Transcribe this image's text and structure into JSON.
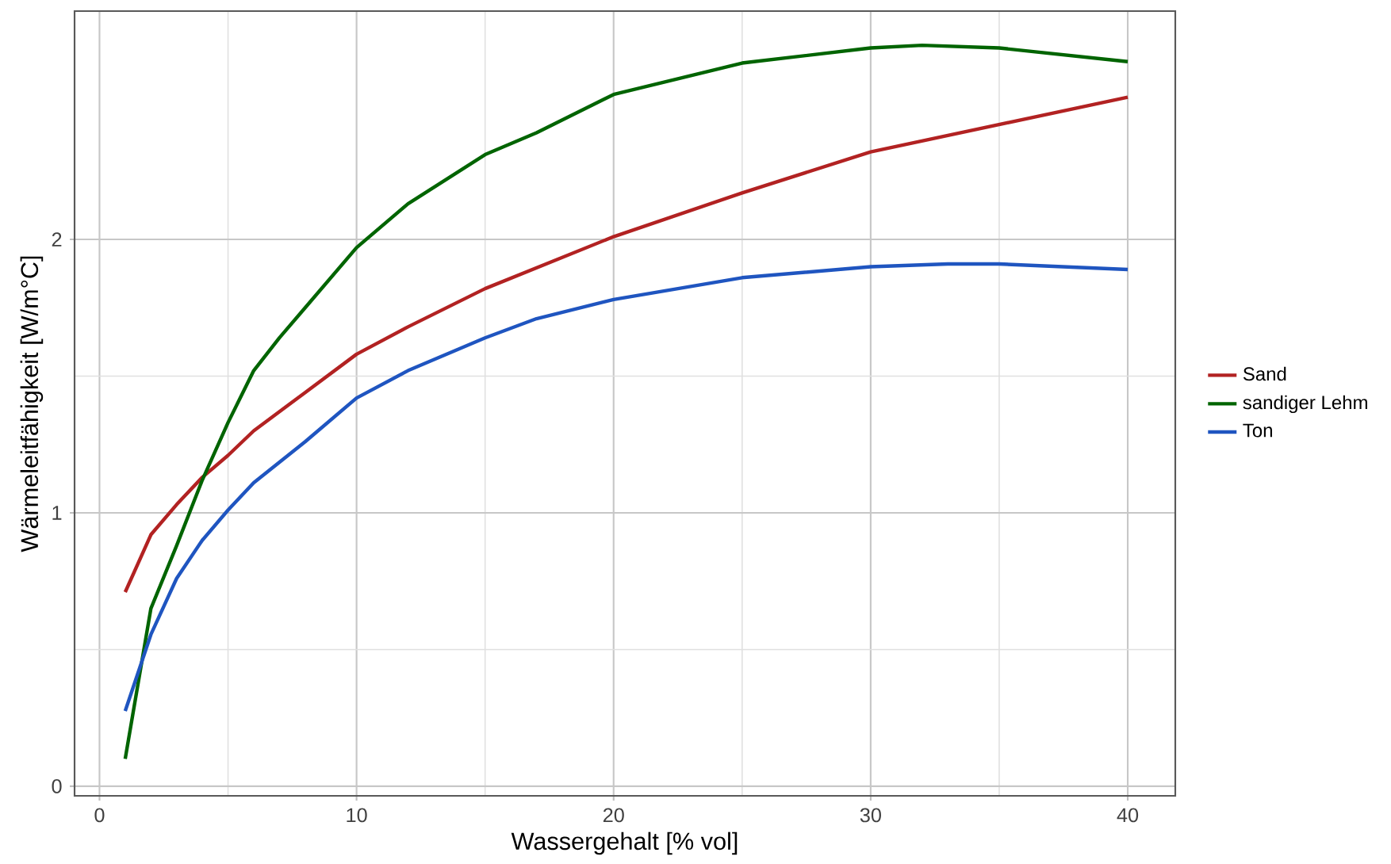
{
  "chart_data": {
    "type": "line",
    "xlabel": "Wassergehalt  [% vol]",
    "ylabel": "Wärmeleitfähigkeit  [W/m°C]",
    "xlim": [
      -0.97,
      41.85
    ],
    "ylim": [
      -0.035,
      2.835
    ],
    "xticks": [
      0,
      10,
      20,
      30,
      40
    ],
    "yticks": [
      0,
      1,
      2
    ],
    "grid": true,
    "legend": "right",
    "line_style": "solid",
    "marker": "none",
    "series": [
      {
        "name": "Sand",
        "color": "#b22222",
        "x": [
          1,
          2,
          3,
          4,
          5,
          6,
          8,
          10,
          12,
          15,
          20,
          25,
          30,
          35,
          40
        ],
        "values": [
          0.71,
          0.92,
          1.03,
          1.13,
          1.21,
          1.3,
          1.44,
          1.58,
          1.68,
          1.82,
          2.01,
          2.17,
          2.32,
          2.42,
          2.52
        ]
      },
      {
        "name": "sandiger Lehm",
        "color": "#006400",
        "x": [
          1,
          2,
          3,
          4,
          5,
          6,
          7,
          8,
          10,
          12,
          15,
          17,
          20,
          25,
          30,
          32,
          35,
          40
        ],
        "values": [
          0.1,
          0.65,
          0.88,
          1.12,
          1.33,
          1.52,
          1.64,
          1.75,
          1.97,
          2.13,
          2.31,
          2.39,
          2.53,
          2.645,
          2.7,
          2.71,
          2.7,
          2.65
        ]
      },
      {
        "name": "Ton",
        "color": "#1f55c0",
        "x": [
          1,
          2,
          3,
          4,
          5,
          6,
          8,
          10,
          12,
          15,
          17,
          20,
          25,
          30,
          33,
          35,
          40
        ],
        "values": [
          0.275,
          0.555,
          0.76,
          0.9,
          1.01,
          1.11,
          1.26,
          1.42,
          1.52,
          1.64,
          1.71,
          1.78,
          1.86,
          1.9,
          1.91,
          1.91,
          1.89
        ]
      }
    ]
  }
}
